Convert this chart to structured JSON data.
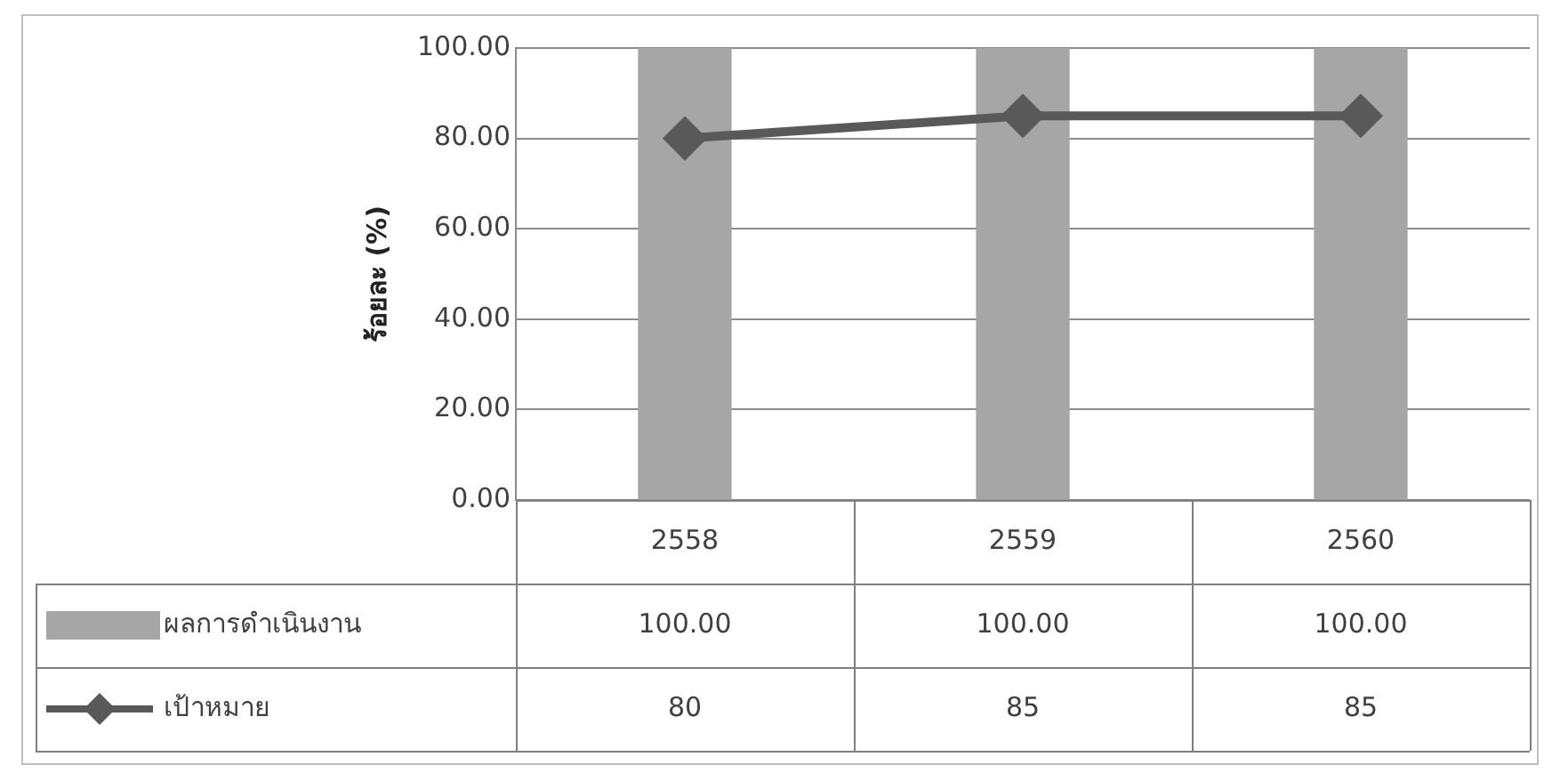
{
  "chart_data": {
    "type": "bar",
    "ylabel": "ร้อยละ (%)",
    "categories": [
      "2558",
      "2559",
      "2560"
    ],
    "series": [
      {
        "name": "ผลการดำเนินงาน",
        "color": "#a6a6a6",
        "values": [
          100,
          100,
          100
        ],
        "value_labels": [
          "100.00",
          "100.00",
          "100.00"
        ]
      },
      {
        "name": "เป้าหมาย",
        "type": "line",
        "color": "#595959",
        "marker": "diamond",
        "values": [
          80,
          85,
          85
        ],
        "value_labels": [
          "80",
          "85",
          "85"
        ]
      }
    ],
    "ylim": [
      0,
      100
    ],
    "yticks": [
      {
        "value": 0,
        "label": "0.00"
      },
      {
        "value": 20,
        "label": "20.00"
      },
      {
        "value": 40,
        "label": "40.00"
      },
      {
        "value": 60,
        "label": "60.00"
      },
      {
        "value": 80,
        "label": "80.00"
      },
      {
        "value": 100,
        "label": "100.00"
      }
    ],
    "grid": "y",
    "legend": "bottom"
  }
}
